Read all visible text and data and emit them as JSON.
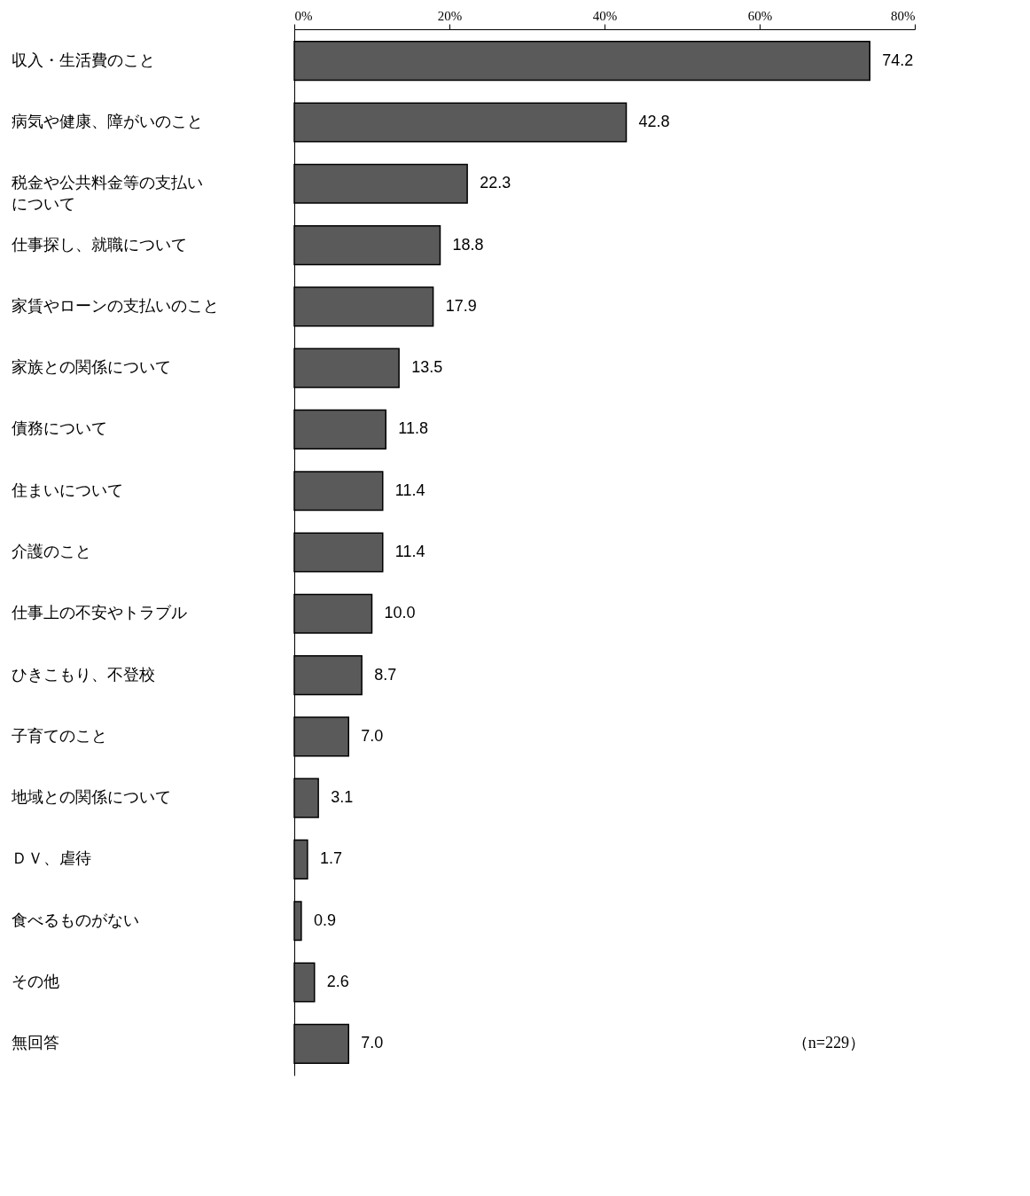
{
  "chart_data": {
    "type": "bar",
    "orientation": "horizontal",
    "categories": [
      "収入・生活費のこと",
      "病気や健康、障がいのこと",
      "税金や公共料金等の支払いについて",
      "仕事探し、就職について",
      "家賃やローンの支払いのこと",
      "家族との関係について",
      "債務について",
      "住まいについて",
      "介護のこと",
      "仕事上の不安やトラブル",
      "ひきこもり、不登校",
      "子育てのこと",
      "地域との関係について",
      "ＤＶ、虐待",
      "食べるものがない",
      "その他",
      "無回答"
    ],
    "values": [
      74.2,
      42.8,
      22.3,
      18.8,
      17.9,
      13.5,
      11.8,
      11.4,
      11.4,
      10.0,
      8.7,
      7.0,
      3.1,
      1.7,
      0.9,
      2.6,
      7.0
    ],
    "value_labels": [
      "74.2",
      "42.8",
      "22.3",
      "18.8",
      "17.9",
      "13.5",
      "11.8",
      "11.4",
      "11.4",
      "10.0",
      "8.7",
      "7.0",
      "3.1",
      "1.7",
      "0.9",
      "2.6",
      "7.0"
    ],
    "color": "#5a5a5a",
    "xlim": [
      0,
      80
    ],
    "xticks": [
      {
        "value": 0,
        "label": "0%"
      },
      {
        "value": 20,
        "label": "20%"
      },
      {
        "value": 40,
        "label": "40%"
      },
      {
        "value": 60,
        "label": "60%"
      },
      {
        "value": 80,
        "label": "80%"
      }
    ],
    "grid": false,
    "annotations": [
      "（n=229）"
    ]
  }
}
